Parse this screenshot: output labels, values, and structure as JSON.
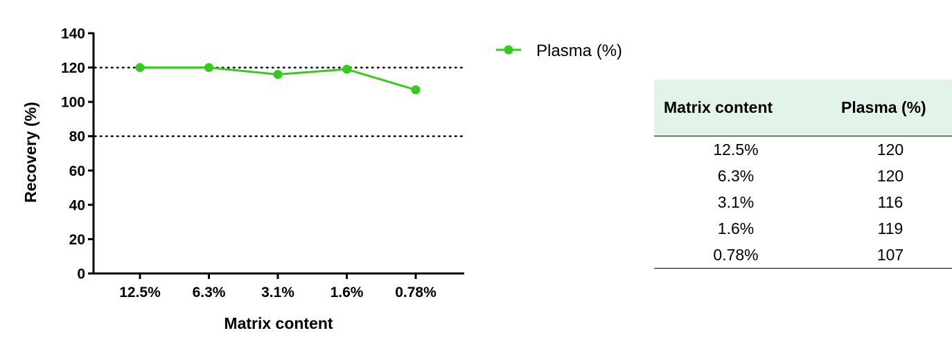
{
  "chart_data": {
    "type": "line",
    "categories": [
      "12.5%",
      "6.3%",
      "3.1%",
      "1.6%",
      "0.78%"
    ],
    "series": [
      {
        "name": "Plasma (%)",
        "values": [
          120,
          120,
          116,
          119,
          107
        ],
        "color": "#33cc1a"
      }
    ],
    "xlabel": "Matrix content",
    "ylabel": "Recovery (%)",
    "ylim": [
      0,
      140
    ],
    "yticks": [
      0,
      20,
      40,
      60,
      80,
      100,
      120,
      140
    ],
    "reference_lines": [
      80,
      120
    ],
    "reference_line_style": "dotted",
    "grid": false,
    "legend_position": "top-right, outside plot"
  },
  "table": {
    "headers": [
      "Matrix content",
      "Plasma (%)"
    ],
    "header_background": "#e2f3ea",
    "rows": [
      [
        "12.5%",
        "120"
      ],
      [
        "6.3%",
        "120"
      ],
      [
        "3.1%",
        "116"
      ],
      [
        "1.6%",
        "119"
      ],
      [
        "0.78%",
        "107"
      ]
    ]
  }
}
